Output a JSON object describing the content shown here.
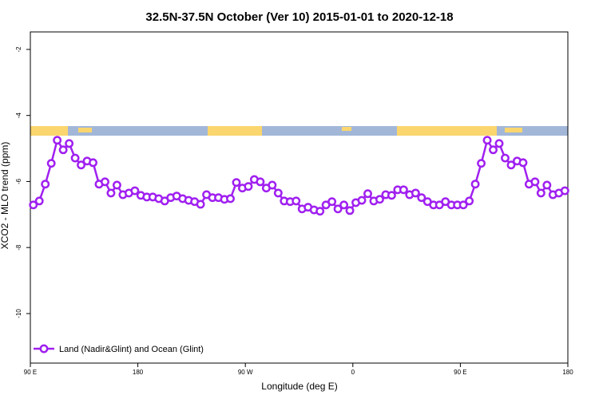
{
  "chart_data": {
    "type": "line",
    "title": "32.5N-37.5N October (Ver 10)   2015-01-01 to 2020-12-18",
    "x_label": "Longitude (deg E)",
    "y_label": "XCO2 - MLO trend (ppm)",
    "xlim": [
      90,
      540
    ],
    "ylim": [
      -11.5,
      -1.47
    ],
    "xticks": [
      {
        "value": 90,
        "label": "90 E"
      },
      180,
      {
        "value": 270,
        "label": "90 W"
      },
      {
        "value": 360,
        "label": "0"
      },
      {
        "value": 450,
        "label": "90 E"
      },
      {
        "value": 540,
        "label": "180"
      }
    ],
    "yticks": [
      -10,
      -8,
      -6,
      -4,
      -2
    ],
    "legend": "bottom-left",
    "x": [
      92.5,
      97.5,
      102.5,
      107.5,
      112.5,
      117.5,
      122.5,
      127.5,
      132.5,
      137.5,
      142.5,
      147.5,
      152.5,
      157.5,
      162.5,
      167.5,
      172.5,
      177.5,
      182.5,
      187.5,
      192.5,
      197.5,
      202.5,
      207.5,
      212.5,
      217.5,
      222.5,
      227.5,
      232.5,
      237.5,
      242.5,
      247.5,
      252.5,
      257.5,
      262.5,
      267.5,
      272.5,
      277.5,
      282.5,
      287.5,
      292.5,
      297.5,
      302.5,
      307.5,
      312.5,
      317.5,
      322.5,
      327.5,
      332.5,
      337.5,
      342.5,
      347.5,
      352.5,
      357.5,
      362.5,
      367.5,
      372.5,
      377.5,
      382.5,
      387.5,
      392.5,
      397.5,
      402.5,
      407.5,
      412.5,
      417.5,
      422.5,
      427.5,
      432.5,
      437.5,
      442.5,
      447.5,
      452.5,
      457.5,
      462.5,
      467.5,
      472.5,
      477.5,
      482.5,
      487.5,
      492.5,
      497.5,
      502.5,
      507.5,
      512.5,
      517.5,
      522.5,
      527.5,
      532.5,
      537.5
    ],
    "series": [
      {
        "name": "Land (Nadir&Glint) and Ocean (Glint)",
        "color": "#a020f0",
        "values": [
          -6.71,
          -6.59,
          -6.08,
          -5.45,
          -4.75,
          -5.04,
          -4.85,
          -5.29,
          -5.5,
          -5.38,
          -5.43,
          -6.08,
          -6.01,
          -6.35,
          -6.11,
          -6.4,
          -6.35,
          -6.28,
          -6.42,
          -6.47,
          -6.47,
          -6.52,
          -6.59,
          -6.49,
          -6.44,
          -6.52,
          -6.57,
          -6.61,
          -6.69,
          -6.4,
          -6.49,
          -6.49,
          -6.54,
          -6.52,
          -6.03,
          -6.2,
          -6.15,
          -5.94,
          -6.01,
          -6.2,
          -6.11,
          -6.35,
          -6.59,
          -6.61,
          -6.59,
          -6.83,
          -6.78,
          -6.86,
          -6.9,
          -6.71,
          -6.61,
          -6.83,
          -6.71,
          -6.88,
          -6.64,
          -6.57,
          -6.37,
          -6.59,
          -6.54,
          -6.4,
          -6.42,
          -6.25,
          -6.25,
          -6.4,
          -6.35,
          -6.49,
          -6.61,
          -6.71,
          -6.71,
          -6.61,
          -6.71,
          -6.71,
          -6.71,
          -6.59,
          -6.08,
          -5.45,
          -4.75,
          -5.04,
          -4.85,
          -5.29,
          -5.5,
          -5.38,
          -5.43,
          -6.08,
          -6.01,
          -6.35,
          -6.11,
          -6.4,
          -6.35,
          -6.28
        ]
      }
    ]
  }
}
